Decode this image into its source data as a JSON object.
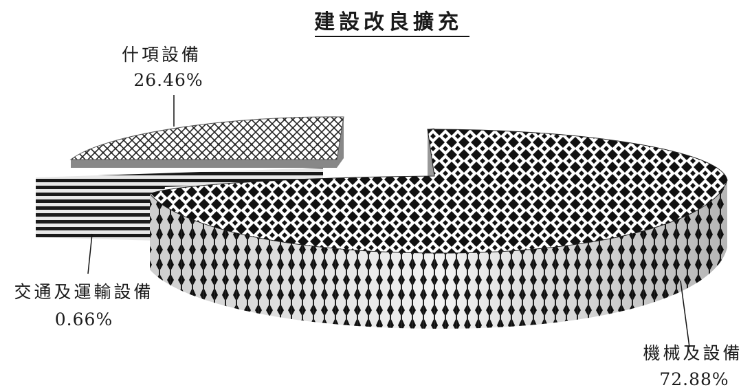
{
  "chart_data": {
    "type": "pie",
    "title": "建設改良擴充",
    "slices": [
      {
        "label": "機械及設備",
        "value": 72.88,
        "value_label": "72.88%",
        "pattern": "diamond-check"
      },
      {
        "label": "交通及運輸設備",
        "value": 0.66,
        "value_label": "0.66%",
        "pattern": "horizontal-stripes"
      },
      {
        "label": "什項設備",
        "value": 26.46,
        "value_label": "26.46%",
        "pattern": "crosshatch"
      }
    ],
    "style": "3d-exploded",
    "colors": {
      "ink": "#111111",
      "paper": "#ffffff",
      "side_shade": "#777777"
    }
  }
}
